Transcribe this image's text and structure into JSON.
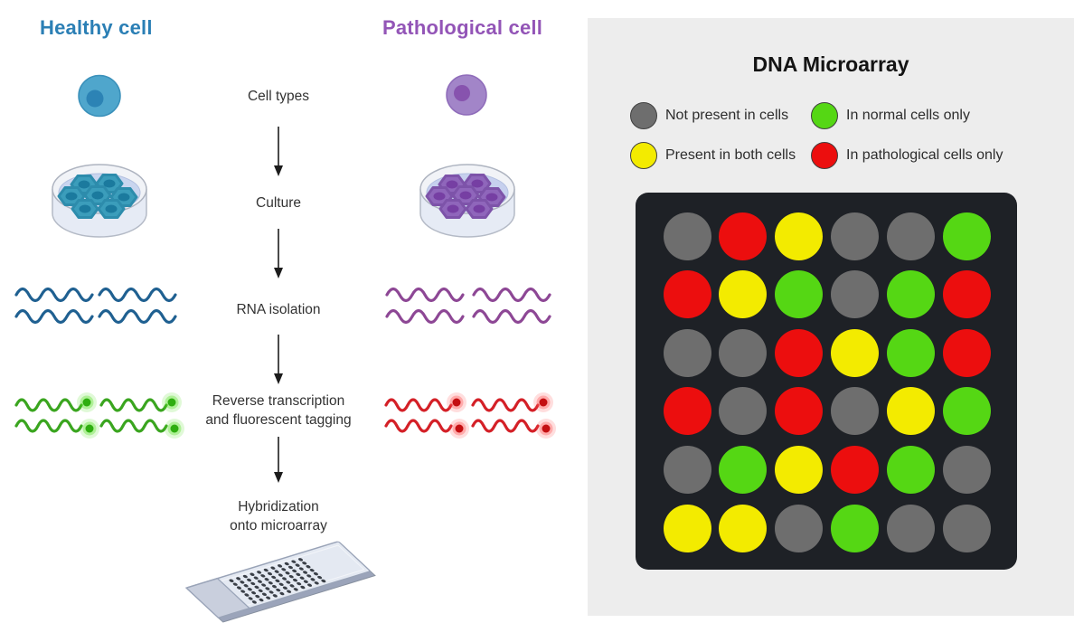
{
  "diagram": {
    "healthy": {
      "title": "Healthy cell"
    },
    "pathological": {
      "title": "Pathological cell"
    }
  },
  "workflow": {
    "steps": [
      "Cell types",
      "Culture",
      "RNA isolation",
      "Reverse transcription\nand fluorescent tagging",
      "Hybridization\nonto microarray"
    ]
  },
  "microarray": {
    "title": "DNA Microarray",
    "legend": [
      {
        "label": "Not present in cells",
        "color": "gray"
      },
      {
        "label": "In normal cells only",
        "color": "green"
      },
      {
        "label": "Present in both cells",
        "color": "yellow"
      },
      {
        "label": "In pathological cells only",
        "color": "red"
      }
    ],
    "spot_colors": {
      "gray": "#6e6e6e",
      "green": "#55d714",
      "yellow": "#f3eb00",
      "red": "#ec0e0e"
    },
    "grid": [
      [
        "gray",
        "red",
        "yellow",
        "gray",
        "gray",
        "green"
      ],
      [
        "red",
        "yellow",
        "green",
        "gray",
        "green",
        "red"
      ],
      [
        "gray",
        "gray",
        "red",
        "yellow",
        "green",
        "red"
      ],
      [
        "red",
        "gray",
        "red",
        "gray",
        "yellow",
        "green"
      ],
      [
        "gray",
        "green",
        "yellow",
        "red",
        "green",
        "gray"
      ],
      [
        "yellow",
        "yellow",
        "gray",
        "green",
        "gray",
        "gray"
      ]
    ]
  },
  "colors": {
    "healthy_accent": "#2b7fb5",
    "pathological_accent": "#9355b7",
    "rna_healthy": "#1f6091",
    "rna_pathological": "#8d4795",
    "tag_healthy": "#3aa51f",
    "tag_pathological": "#d42027",
    "panel_bg": "#ededed",
    "board_bg": "#1e2126"
  }
}
